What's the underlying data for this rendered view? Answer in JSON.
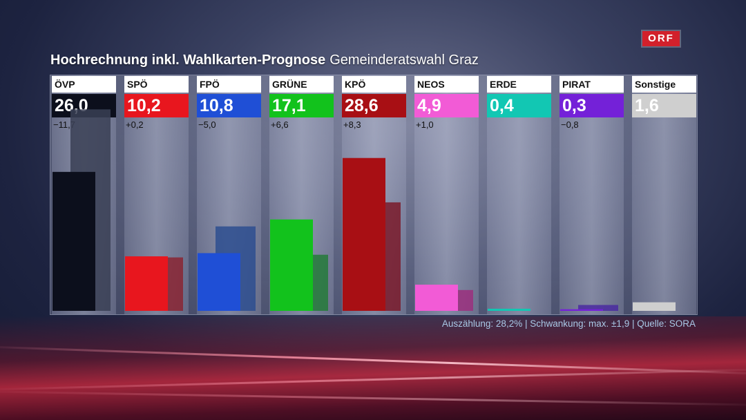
{
  "header": {
    "title_main": "Hochrechnung inkl. Wahlkarten-Prognose",
    "title_sub": "Gemeinderatswahl Graz",
    "logo": "ORF"
  },
  "footer": {
    "text": "Auszählung: 28,2% | Schwankung: max. ±1,9 | Quelle: SORA"
  },
  "chart_data": {
    "type": "bar",
    "title": "Hochrechnung inkl. Wahlkarten-Prognose Gemeinderatswahl Graz",
    "categories": [
      "ÖVP",
      "SPÖ",
      "FPÖ",
      "GRÜNE",
      "KPÖ",
      "NEOS",
      "ERDE",
      "PIRAT",
      "Sonstige"
    ],
    "value_labels": [
      "26,0",
      "10,2",
      "10,8",
      "17,1",
      "28,6",
      "4,9",
      "0,4",
      "0,3",
      "1,6"
    ],
    "change_labels": [
      "−11,7",
      "+0,2",
      "−5,0",
      "+6,6",
      "+8,3",
      "+1,0",
      "",
      "−0,8",
      ""
    ],
    "series": [
      {
        "values": [
          26.0,
          10.2,
          10.8,
          17.1,
          28.6,
          4.9,
          0.4,
          0.3,
          1.6
        ]
      },
      {
        "values": [
          37.7,
          10.0,
          15.8,
          10.5,
          20.3,
          3.9,
          null,
          1.1,
          null
        ]
      }
    ],
    "colors": [
      "#0c0f1c",
      "#e8161e",
      "#1f4fd6",
      "#12c21c",
      "#a80f14",
      "#f25bd6",
      "#12c7b3",
      "#7421d8",
      "#cfcfcf"
    ],
    "prev_colors": [
      "#3a3f55",
      "#8a2533",
      "#2d4d8f",
      "#257a3a",
      "#7a1a2a",
      "#9b2f7e",
      "#2a8f86",
      "#4a2aa0",
      "#9b9b9b"
    ],
    "ylim": [
      0,
      40
    ],
    "grid": false,
    "legend": "none"
  }
}
